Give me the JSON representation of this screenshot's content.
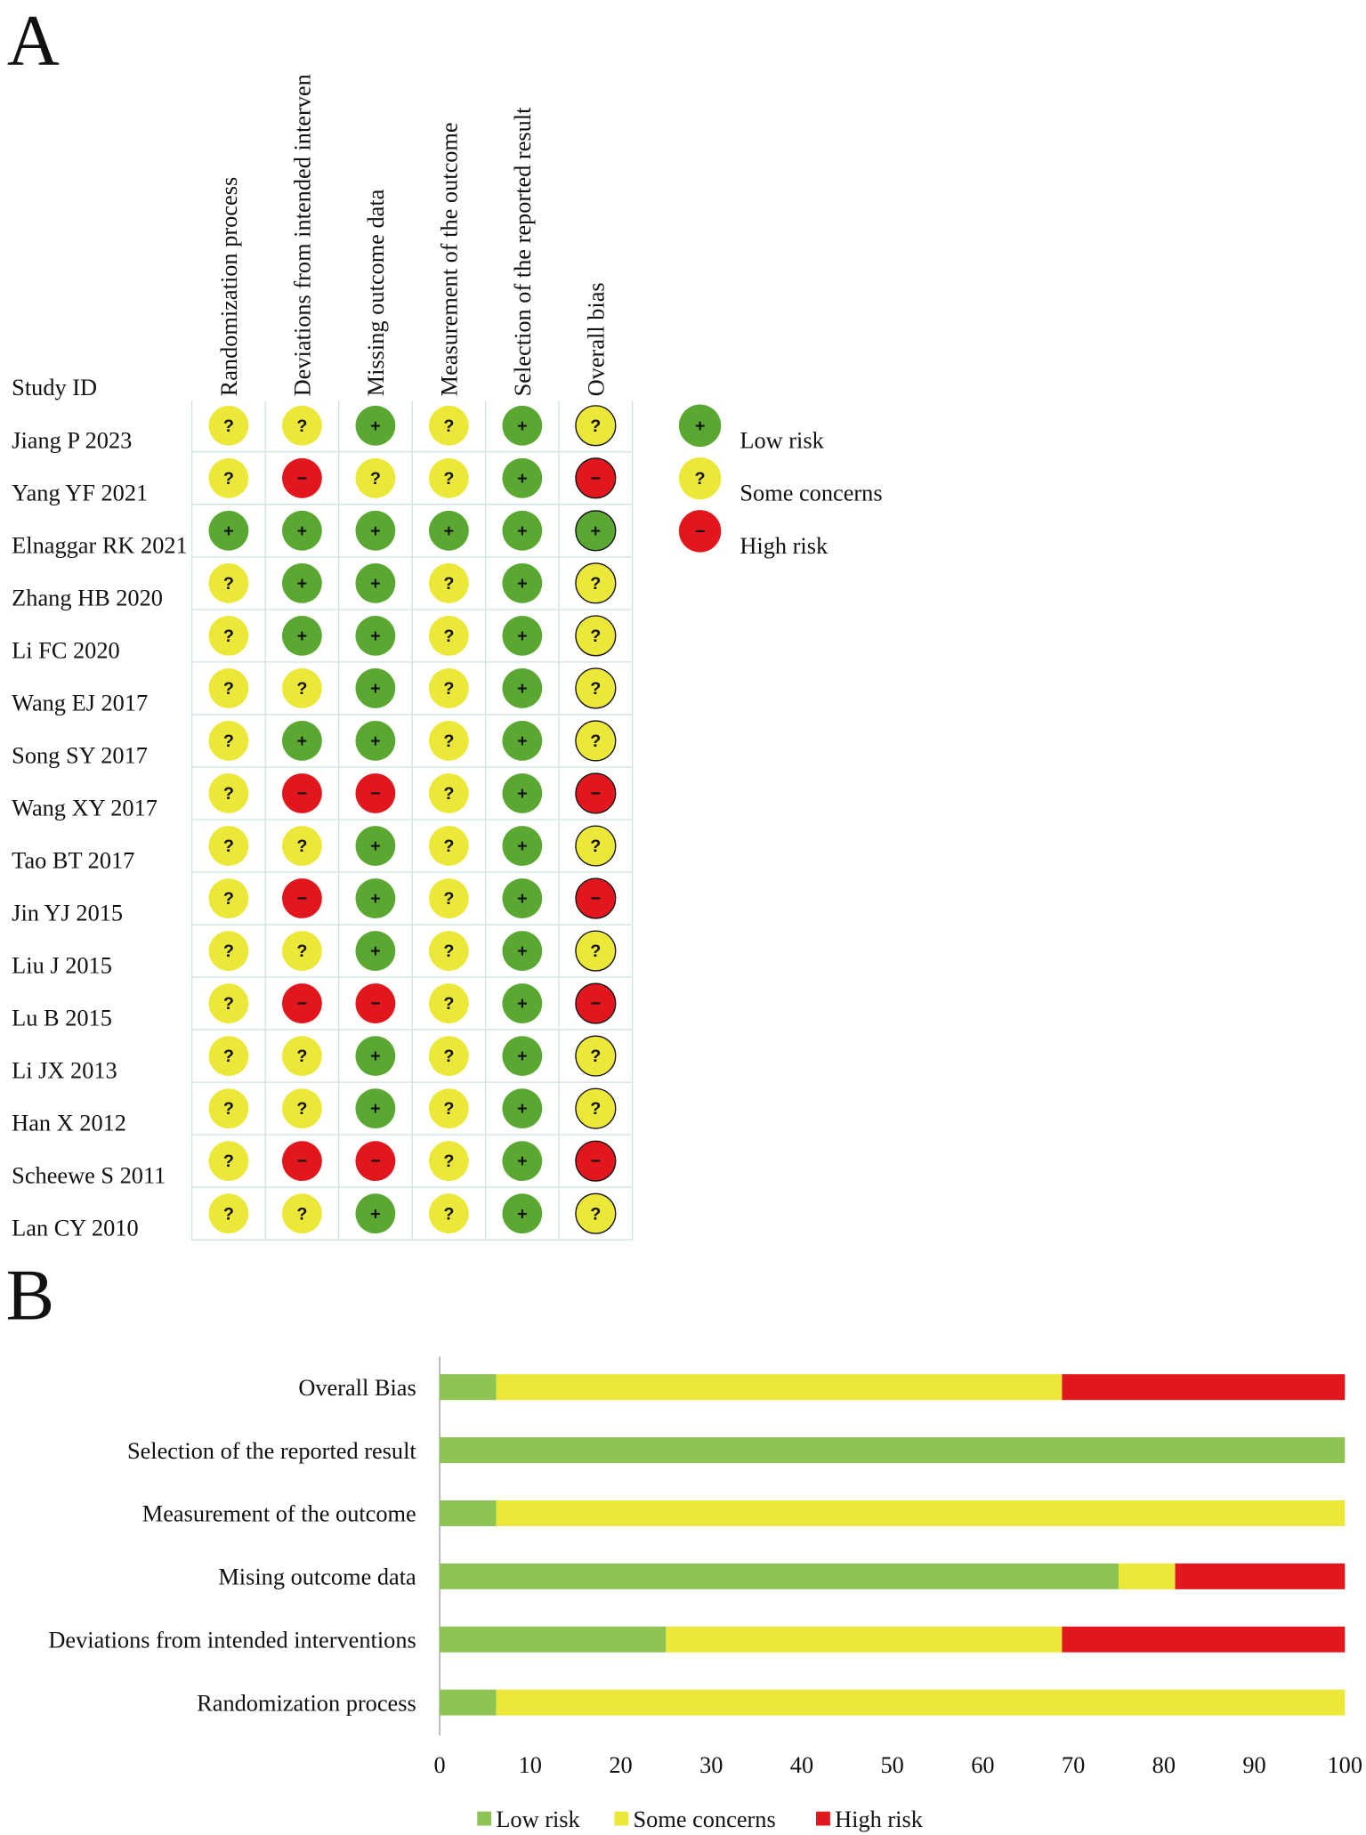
{
  "panel_a": {
    "label": "A",
    "header": "Study ID",
    "domains": [
      "Randomization process",
      "Deviations from intended interven",
      "Missing outcome data",
      "Measurement of the outcome",
      "Selection of the reported result",
      "Overall bias"
    ],
    "studies": [
      {
        "name": "Jiang P 2023",
        "judgements": [
          "?",
          "?",
          "+",
          "?",
          "+",
          "?"
        ]
      },
      {
        "name": "Yang YF 2021",
        "judgements": [
          "?",
          "−",
          "?",
          "?",
          "+",
          "−"
        ]
      },
      {
        "name": "Elnaggar RK 2021",
        "judgements": [
          "+",
          "+",
          "+",
          "+",
          "+",
          "+"
        ]
      },
      {
        "name": "Zhang HB 2020",
        "judgements": [
          "?",
          "+",
          "+",
          "?",
          "+",
          "?"
        ]
      },
      {
        "name": "Li FC 2020",
        "judgements": [
          "?",
          "+",
          "+",
          "?",
          "+",
          "?"
        ]
      },
      {
        "name": "Wang EJ 2017",
        "judgements": [
          "?",
          "?",
          "+",
          "?",
          "+",
          "?"
        ]
      },
      {
        "name": "Song SY 2017",
        "judgements": [
          "?",
          "+",
          "+",
          "?",
          "+",
          "?"
        ]
      },
      {
        "name": "Wang XY 2017",
        "judgements": [
          "?",
          "−",
          "−",
          "?",
          "+",
          "−"
        ]
      },
      {
        "name": "Tao BT 2017",
        "judgements": [
          "?",
          "?",
          "+",
          "?",
          "+",
          "?"
        ]
      },
      {
        "name": "Jin YJ 2015",
        "judgements": [
          "?",
          "−",
          "+",
          "?",
          "+",
          "−"
        ]
      },
      {
        "name": "Liu J 2015",
        "judgements": [
          "?",
          "?",
          "+",
          "?",
          "+",
          "?"
        ]
      },
      {
        "name": "Lu B 2015",
        "judgements": [
          "?",
          "−",
          "−",
          "?",
          "+",
          "−"
        ]
      },
      {
        "name": "Li JX 2013",
        "judgements": [
          "?",
          "?",
          "+",
          "?",
          "+",
          "?"
        ]
      },
      {
        "name": "Han X 2012",
        "judgements": [
          "?",
          "?",
          "+",
          "?",
          "+",
          "?"
        ]
      },
      {
        "name": "Scheewe S 2011",
        "judgements": [
          "?",
          "−",
          "−",
          "?",
          "+",
          "−"
        ]
      },
      {
        "name": "Lan CY 2010",
        "judgements": [
          "?",
          "?",
          "+",
          "?",
          "+",
          "?"
        ]
      }
    ],
    "legend": [
      {
        "symbol": "+",
        "label": "Low risk",
        "color": "#5aa832"
      },
      {
        "symbol": "?",
        "label": "Some concerns",
        "color": "#ece83a"
      },
      {
        "symbol": "−",
        "label": "High risk",
        "color": "#e2171d"
      }
    ]
  },
  "chart_data": {
    "type": "bar",
    "panel_label": "B",
    "orientation": "horizontal",
    "stacked": true,
    "categories": [
      "Overall Bias",
      "Selection of the reported result",
      "Measurement of the outcome",
      "Mising outcome data",
      "Deviations from intended interventions",
      "Randomization process"
    ],
    "series": [
      {
        "name": "Low risk",
        "color": "#8dc454",
        "values": [
          6.25,
          100,
          6.25,
          75,
          25,
          6.25
        ]
      },
      {
        "name": "Some concerns",
        "color": "#ece83a",
        "values": [
          62.5,
          0,
          93.75,
          6.25,
          43.75,
          93.75
        ]
      },
      {
        "name": "High risk",
        "color": "#e2171d",
        "values": [
          31.25,
          0,
          0,
          18.75,
          31.25,
          0
        ]
      }
    ],
    "xlim": [
      0,
      100
    ],
    "xticks": [
      0,
      10,
      20,
      30,
      40,
      50,
      60,
      70,
      80,
      90,
      100
    ],
    "legend": "bottom"
  }
}
